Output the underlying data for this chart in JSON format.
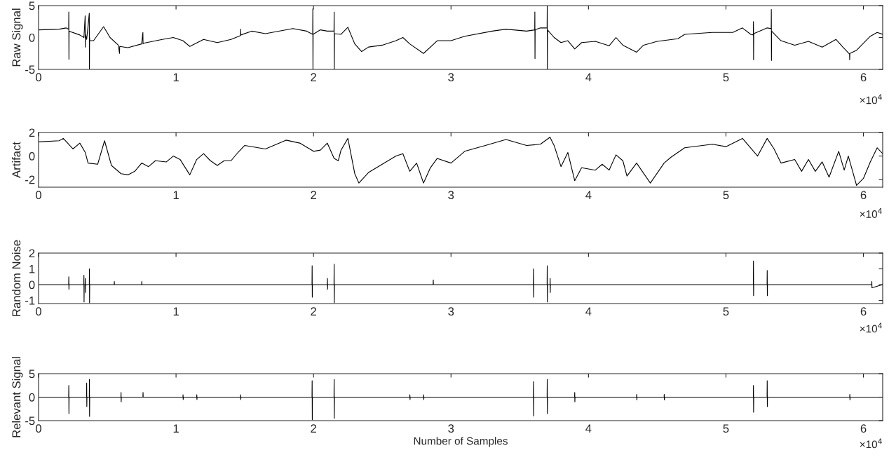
{
  "chart_data": [
    {
      "type": "line",
      "ylabel": "Raw Signal",
      "grid": false,
      "xlim": [
        0,
        6.14
      ],
      "xticks": [
        0,
        1,
        2,
        3,
        4,
        5,
        6
      ],
      "ylim": [
        -5,
        5
      ],
      "yticks": [
        -5,
        0,
        5
      ],
      "annotations": [
        "×10$^{4}$"
      ],
      "x": [
        0,
        0.15,
        0.2,
        0.219,
        0.22,
        0.221,
        0.222,
        0.3,
        0.33,
        0.339,
        0.34,
        0.341,
        0.35,
        0.369,
        0.37,
        0.371,
        0.372,
        0.4,
        0.473,
        0.52,
        0.58,
        0.589,
        0.59,
        0.591,
        0.65,
        0.75,
        0.759,
        0.76,
        0.761,
        0.9,
        0.98,
        1.05,
        1.1,
        1.2,
        1.3,
        1.4,
        1.469,
        1.47,
        1.471,
        1.55,
        1.65,
        1.85,
        1.95,
        1.994,
        1.995,
        1.996,
        1.997,
        2.05,
        2.1,
        2.149,
        2.15,
        2.151,
        2.152,
        2.2,
        2.25,
        2.3,
        2.35,
        2.4,
        2.5,
        2.6,
        2.65,
        2.7,
        2.8,
        2.9,
        3.0,
        3.1,
        3.3,
        3.4,
        3.55,
        3.609,
        3.61,
        3.611,
        3.612,
        3.65,
        3.699,
        3.7,
        3.701,
        3.702,
        3.75,
        3.8,
        3.85,
        3.9,
        3.95,
        4.05,
        4.15,
        4.2,
        4.25,
        4.35,
        4.4,
        4.5,
        4.65,
        4.7,
        4.9,
        5.05,
        5.12,
        5.18,
        5.199,
        5.2,
        5.201,
        5.202,
        5.3,
        5.329,
        5.33,
        5.331,
        5.332,
        5.4,
        5.5,
        5.6,
        5.7,
        5.8,
        5.85,
        5.899,
        5.9,
        5.901,
        5.95,
        6.05,
        6.1,
        6.14
      ],
      "series": [
        {
          "color": "#000000",
          "values": [
            1.2,
            1.3,
            1.5,
            1.3,
            4.0,
            -3.4,
            1.0,
            0.4,
            0.0,
            3.4,
            -1.5,
            0.5,
            -0.3,
            3.8,
            -5.0,
            0.0,
            -0.5,
            -0.5,
            1.7,
            0.0,
            -1.2,
            -2.5,
            -1.5,
            -1.4,
            -1.6,
            -1.0,
            0.8,
            -1.0,
            -0.9,
            -0.3,
            0.0,
            -0.5,
            -1.4,
            -0.3,
            -0.8,
            -0.3,
            0.3,
            1.3,
            0.4,
            1.0,
            0.6,
            1.4,
            1.0,
            0.5,
            4.5,
            -5.0,
            0.5,
            1.2,
            1.0,
            1.0,
            4.0,
            -5.0,
            0.6,
            0.5,
            1.6,
            -1.0,
            -2.2,
            -1.5,
            -1.2,
            -0.5,
            0.0,
            -1.0,
            -2.5,
            -0.5,
            -0.5,
            0.2,
            1.0,
            1.3,
            1.0,
            1.2,
            4.0,
            -3.3,
            1.2,
            1.5,
            1.5,
            5.0,
            -5.0,
            1.2,
            0.0,
            -0.8,
            -0.5,
            -1.8,
            -0.8,
            -0.6,
            -1.3,
            0.0,
            -1.2,
            -2.3,
            -1.2,
            -0.6,
            -0.2,
            0.5,
            0.8,
            0.8,
            1.5,
            0.5,
            0.4,
            2.5,
            -3.5,
            0.6,
            1.5,
            1.4,
            4.4,
            -3.6,
            1.0,
            -0.5,
            -1.2,
            -0.6,
            -1.5,
            -0.3,
            -1.5,
            -2.6,
            -3.5,
            -2.5,
            -2.0,
            0.2,
            0.8,
            0.5
          ]
        }
      ]
    },
    {
      "type": "line",
      "ylabel": "Artifact",
      "grid": false,
      "xlim": [
        0,
        6.14
      ],
      "xticks": [
        0,
        1,
        2,
        3,
        4,
        5,
        6
      ],
      "ylim": [
        -2.65,
        2
      ],
      "yticks": [
        -2,
        0,
        2
      ],
      "annotations": [
        "×10$^{4}$"
      ],
      "x": [
        0,
        0.15,
        0.18,
        0.25,
        0.3,
        0.34,
        0.36,
        0.43,
        0.48,
        0.53,
        0.6,
        0.65,
        0.7,
        0.75,
        0.8,
        0.85,
        0.93,
        0.98,
        1.03,
        1.1,
        1.15,
        1.2,
        1.25,
        1.3,
        1.35,
        1.4,
        1.45,
        1.5,
        1.65,
        1.8,
        1.9,
        2.0,
        2.05,
        2.1,
        2.15,
        2.18,
        2.2,
        2.25,
        2.3,
        2.33,
        2.4,
        2.5,
        2.6,
        2.65,
        2.7,
        2.75,
        2.8,
        2.85,
        2.9,
        3.0,
        3.1,
        3.25,
        3.4,
        3.55,
        3.65,
        3.72,
        3.75,
        3.8,
        3.85,
        3.9,
        3.95,
        4.05,
        4.1,
        4.15,
        4.2,
        4.25,
        4.28,
        4.35,
        4.45,
        4.55,
        4.6,
        4.7,
        4.9,
        5.0,
        5.12,
        5.23,
        5.3,
        5.35,
        5.4,
        5.5,
        5.55,
        5.6,
        5.65,
        5.7,
        5.75,
        5.82,
        5.86,
        5.89,
        5.95,
        6.0,
        6.05,
        6.1,
        6.14
      ],
      "series": [
        {
          "color": "#000000",
          "values": [
            1.2,
            1.3,
            1.5,
            0.6,
            1.1,
            0.3,
            -0.6,
            -0.7,
            1.3,
            -0.8,
            -1.5,
            -1.6,
            -1.3,
            -0.6,
            -0.9,
            -0.4,
            -0.5,
            0.0,
            -0.3,
            -1.6,
            -0.3,
            0.2,
            -0.4,
            -0.8,
            -0.4,
            -0.4,
            0.3,
            0.9,
            0.6,
            1.35,
            1.1,
            0.4,
            0.5,
            1.1,
            -0.2,
            -0.4,
            0.5,
            1.5,
            -1.5,
            -2.3,
            -1.4,
            -0.7,
            0.0,
            0.2,
            -1.3,
            -0.6,
            -2.3,
            -1.0,
            -0.2,
            -0.6,
            0.4,
            0.9,
            1.4,
            0.9,
            1.0,
            1.6,
            0.9,
            -0.9,
            0.3,
            -2.1,
            -1.0,
            -1.2,
            -0.7,
            -1.2,
            0.1,
            -0.4,
            -1.7,
            -0.6,
            -2.3,
            -0.6,
            -0.1,
            0.7,
            1.0,
            0.8,
            1.5,
            0.0,
            1.5,
            0.6,
            -0.6,
            -0.3,
            -1.3,
            -0.3,
            -1.3,
            -0.5,
            -1.8,
            0.4,
            -1.2,
            0.0,
            -2.5,
            -1.9,
            -0.5,
            0.7,
            0.2
          ]
        }
      ]
    },
    {
      "type": "line",
      "ylabel": "Random Noise",
      "grid": false,
      "xlim": [
        0,
        6.14
      ],
      "xticks": [
        0,
        1,
        2,
        3,
        4,
        5,
        6
      ],
      "ylim": [
        -1.2,
        2
      ],
      "yticks": [
        -1,
        0,
        1,
        2
      ],
      "annotations": [
        "×10$^{4}$"
      ],
      "x": [
        0,
        0.219,
        0.22,
        0.221,
        0.222,
        0.329,
        0.33,
        0.331,
        0.332,
        0.339,
        0.34,
        0.341,
        0.342,
        0.369,
        0.37,
        0.371,
        0.372,
        0.55,
        0.551,
        0.552,
        0.75,
        0.751,
        0.752,
        1.989,
        1.99,
        1.991,
        1.992,
        2.1,
        2.101,
        2.102,
        2.103,
        2.149,
        2.15,
        2.151,
        2.152,
        2.87,
        2.871,
        2.872,
        3.599,
        3.6,
        3.601,
        3.602,
        3.699,
        3.7,
        3.701,
        3.702,
        3.72,
        3.721,
        3.722,
        3.723,
        5.199,
        5.2,
        5.201,
        5.202,
        5.299,
        5.3,
        5.301,
        5.302,
        6.06,
        6.061,
        6.062,
        6.14
      ],
      "series": [
        {
          "color": "#000000",
          "values": [
            0.0,
            0.0,
            0.5,
            -0.3,
            0.0,
            0.0,
            0.6,
            -1.1,
            0.0,
            0.0,
            0.4,
            -0.5,
            0.0,
            0.0,
            1.0,
            -1.15,
            0.0,
            0.0,
            0.2,
            0.0,
            0.0,
            0.2,
            0.0,
            0.0,
            1.2,
            -0.8,
            0.0,
            0.0,
            0.4,
            -0.3,
            0.0,
            0.0,
            1.3,
            -1.15,
            0.0,
            0.0,
            0.3,
            0.0,
            0.0,
            1.0,
            -0.8,
            0.0,
            0.0,
            1.2,
            -1.1,
            0.0,
            0.0,
            0.4,
            -0.5,
            0.0,
            0.0,
            1.5,
            -0.7,
            0.0,
            0.0,
            0.9,
            -0.7,
            0.0,
            0.0,
            0.2,
            -0.2,
            0.0
          ]
        }
      ]
    },
    {
      "type": "line",
      "ylabel": "Relevant Signal",
      "xlabel": "Number of Samples",
      "grid": false,
      "xlim": [
        0,
        6.14
      ],
      "xticks": [
        0,
        1,
        2,
        3,
        4,
        5,
        6
      ],
      "ylim": [
        -5,
        5
      ],
      "yticks": [
        -5,
        0,
        5
      ],
      "annotations": [
        "×10$^{4}$"
      ],
      "x": [
        0,
        0.219,
        0.22,
        0.221,
        0.222,
        0.349,
        0.35,
        0.351,
        0.352,
        0.369,
        0.37,
        0.371,
        0.372,
        0.599,
        0.6,
        0.601,
        0.602,
        0.759,
        0.76,
        0.761,
        1.05,
        1.051,
        1.052,
        1.053,
        1.15,
        1.151,
        1.152,
        1.153,
        1.469,
        1.47,
        1.471,
        1.472,
        1.989,
        1.99,
        1.991,
        1.992,
        2.149,
        2.15,
        2.151,
        2.152,
        2.7,
        2.701,
        2.702,
        2.703,
        2.8,
        2.801,
        2.802,
        2.803,
        3.599,
        3.6,
        3.601,
        3.602,
        3.699,
        3.7,
        3.701,
        3.702,
        3.899,
        3.9,
        3.901,
        3.902,
        4.35,
        4.351,
        4.352,
        4.353,
        4.55,
        4.551,
        4.552,
        4.553,
        5.199,
        5.2,
        5.201,
        5.202,
        5.299,
        5.3,
        5.301,
        5.302,
        5.9,
        5.901,
        5.902,
        5.903,
        6.14
      ],
      "series": [
        {
          "color": "#000000",
          "values": [
            0.0,
            0.0,
            2.5,
            -3.5,
            0.0,
            0.0,
            3.0,
            -2.0,
            0.0,
            0.0,
            3.8,
            -4.1,
            0.0,
            0.0,
            1.0,
            -1.0,
            0.0,
            0.0,
            1.0,
            0.0,
            0.0,
            0.5,
            -0.5,
            0.0,
            0.0,
            0.5,
            -0.5,
            0.0,
            0.0,
            0.5,
            -0.5,
            0.0,
            0.0,
            3.5,
            -4.8,
            0.0,
            0.0,
            3.8,
            -4.5,
            0.0,
            0.0,
            0.5,
            -0.5,
            0.0,
            0.0,
            0.5,
            -0.5,
            0.0,
            0.0,
            3.3,
            -4.0,
            0.0,
            0.0,
            3.8,
            -3.5,
            0.0,
            0.0,
            1.0,
            -1.0,
            0.0,
            0.0,
            0.6,
            -0.6,
            0.0,
            0.0,
            0.6,
            -0.6,
            0.0,
            0.0,
            2.5,
            -3.2,
            0.0,
            0.0,
            3.5,
            -2.0,
            0.0,
            0.0,
            0.6,
            -0.6,
            0.0,
            0.0
          ]
        }
      ]
    }
  ]
}
